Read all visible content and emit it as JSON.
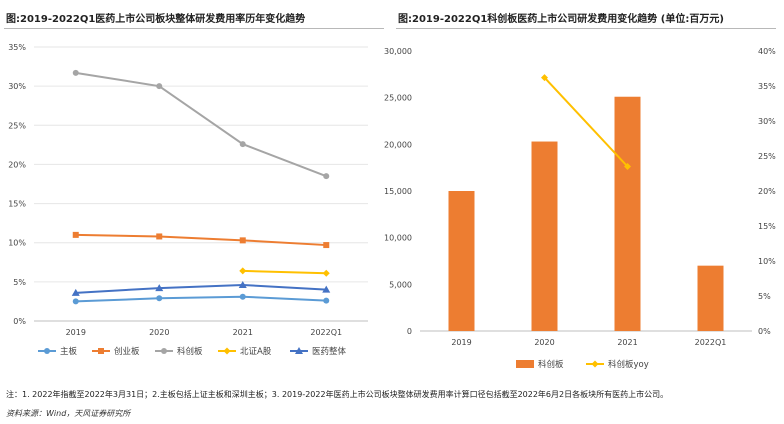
{
  "chart_data": [
    {
      "type": "line",
      "title": "图:2019-2022Q1医药上市公司板块整体研发费用率历年变化趋势",
      "categories": [
        "2019",
        "2020",
        "2021",
        "2022Q1"
      ],
      "ylim": [
        0,
        35
      ],
      "ytick_labels": [
        "0%",
        "5%",
        "10%",
        "15%",
        "20%",
        "25%",
        "30%",
        "35%"
      ],
      "grid": true,
      "legend_position": "bottom",
      "series": [
        {
          "name": "主板",
          "color": "#5b9bd5",
          "marker": "circle",
          "values": [
            2.5,
            2.9,
            3.1,
            2.6
          ]
        },
        {
          "name": "创业板",
          "color": "#ed7d31",
          "marker": "square",
          "values": [
            11.0,
            10.8,
            10.3,
            9.7
          ]
        },
        {
          "name": "科创板",
          "color": "#a5a5a5",
          "marker": "circle",
          "values": [
            31.7,
            30.0,
            22.6,
            18.5
          ]
        },
        {
          "name": "北证A股",
          "color": "#ffc000",
          "marker": "diamond",
          "values": [
            null,
            null,
            6.4,
            6.1
          ]
        },
        {
          "name": "医药整体",
          "color": "#4472c4",
          "marker": "triangle",
          "values": [
            3.6,
            4.2,
            4.6,
            4.0
          ]
        }
      ]
    },
    {
      "type": "bar",
      "title": "图:2019-2022Q1科创板医药上市公司研发费用变化趋势 (单位:百万元)",
      "categories": [
        "2019",
        "2020",
        "2021",
        "2022Q1"
      ],
      "ylim": [
        0,
        30000
      ],
      "ytick_labels": [
        "0",
        "5,000",
        "10,000",
        "15,000",
        "20,000",
        "25,000",
        "30,000"
      ],
      "y2lim": [
        0,
        40
      ],
      "y2tick_labels": [
        "0%",
        "5%",
        "10%",
        "15%",
        "20%",
        "25%",
        "30%",
        "35%",
        "40%"
      ],
      "grid": false,
      "legend_position": "bottom",
      "series": [
        {
          "name": "科创板",
          "type": "bar",
          "axis": "left",
          "color": "#ed7d31",
          "values": [
            15000,
            20300,
            25100,
            7000
          ]
        },
        {
          "name": "科创板yoy",
          "type": "line",
          "axis": "right",
          "color": "#ffc000",
          "marker": "diamond",
          "values": [
            null,
            36.2,
            23.5,
            null
          ]
        }
      ]
    }
  ],
  "footnote": "注：1. 2022年指截至2022年3月31日；2.主板包括上证主板和深圳主板；3. 2019-2022年医药上市公司板块整体研发费用率计算口径包括截至2022年6月2日各板块所有医药上市公司。",
  "source": "资料来源：Wind，天风证券研究所"
}
